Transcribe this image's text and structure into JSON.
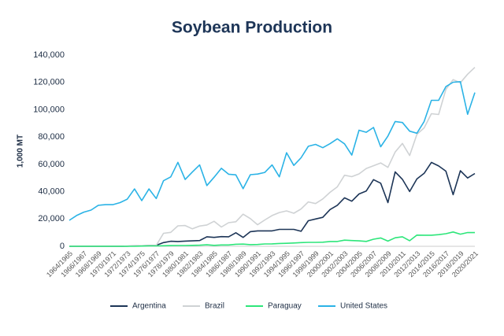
{
  "chart_data": {
    "type": "line",
    "title": "Soybean Production",
    "y_label": "1,000 MT",
    "categories": [
      "1964/1965",
      null,
      "1966/1967",
      null,
      "1968/1969",
      null,
      "1970/1971",
      null,
      "1972/1973",
      null,
      "1974/1975",
      null,
      "1976/1977",
      null,
      "1978/1979",
      null,
      "1980/1981",
      null,
      "1982/1983",
      null,
      "1984/1985",
      null,
      "1986/1987",
      null,
      "1988/1989",
      null,
      "1990/1991",
      null,
      "1992/1993",
      null,
      "1994/1995",
      null,
      "1996/1997",
      null,
      "1998/1999",
      null,
      "2000/2001",
      null,
      "2002/2003",
      null,
      "2004/2005",
      null,
      "2006/2007",
      null,
      "2008/2009",
      null,
      "2010/2011",
      null,
      "2012/2013",
      null,
      "2014/2015",
      null,
      "2016/2017",
      null,
      "2018/2019",
      null,
      "2020/2021"
    ],
    "series": [
      {
        "name": "Argentina",
        "color": "#1d3557",
        "values": [
          0,
          0,
          0,
          0,
          0,
          0,
          0,
          0,
          100,
          300,
          400,
          500,
          700,
          2700,
          3700,
          3500,
          3800,
          4000,
          4200,
          7000,
          6500,
          7100,
          7000,
          9900,
          6500,
          10700,
          11300,
          11300,
          11300,
          12400,
          12400,
          12400,
          11000,
          18700,
          20000,
          21200,
          26900,
          30000,
          35500,
          33000,
          38300,
          40500,
          48800,
          46200,
          32000,
          54500,
          49000,
          40100,
          49300,
          53400,
          61400,
          58800,
          55000,
          37800,
          55300,
          50000,
          53300
        ]
      },
      {
        "name": "Brazil",
        "color": "#cfd2d4",
        "values": [
          0,
          0,
          0,
          0,
          0,
          0,
          0,
          0,
          200,
          300,
          400,
          500,
          700,
          9500,
          10200,
          15000,
          15200,
          12800,
          14800,
          15600,
          18300,
          14100,
          17300,
          18000,
          23500,
          20300,
          15800,
          19300,
          22500,
          24700,
          25900,
          24200,
          27300,
          32500,
          31300,
          34700,
          39500,
          43500,
          52000,
          51000,
          53000,
          57000,
          59000,
          61000,
          57800,
          69000,
          75300,
          66500,
          82000,
          86700,
          97100,
          96500,
          114900,
          122000,
          119700,
          126000,
          131000
        ]
      },
      {
        "name": "Paraguay",
        "color": "#2de67a",
        "values": [
          0,
          0,
          0,
          0,
          0,
          0,
          0,
          0,
          0,
          0,
          200,
          300,
          300,
          400,
          500,
          600,
          600,
          700,
          800,
          1100,
          700,
          1000,
          1000,
          1500,
          1600,
          1200,
          1300,
          1700,
          1800,
          2100,
          2200,
          2400,
          2700,
          2900,
          2900,
          3000,
          3500,
          3500,
          4500,
          4200,
          4000,
          3600,
          5200,
          6100,
          3800,
          6200,
          7000,
          4100,
          8200,
          8100,
          8100,
          8500,
          9200,
          10500,
          8900,
          10100,
          10000
        ]
      },
      {
        "name": "United States",
        "color": "#2bb3e6",
        "values": [
          19000,
          22500,
          25000,
          26500,
          30000,
          30500,
          30500,
          32000,
          34500,
          42000,
          33500,
          42000,
          35000,
          48000,
          50800,
          61500,
          48900,
          54400,
          59600,
          44500,
          50600,
          57100,
          52800,
          52300,
          42200,
          52400,
          52900,
          54100,
          59600,
          50900,
          68500,
          59200,
          64800,
          73200,
          74600,
          72200,
          75100,
          78700,
          75000,
          66800,
          85000,
          83500,
          87000,
          72900,
          80700,
          91400,
          90600,
          84300,
          82800,
          91400,
          106900,
          106900,
          116900,
          120100,
          120500,
          96700,
          112600
        ]
      }
    ],
    "ylim": [
      0,
      140000
    ],
    "yticks": [
      0,
      {
        "value": 20000,
        "label": "20,000"
      },
      {
        "value": 40000,
        "label": "40,000"
      },
      {
        "value": 60000,
        "label": "60,000"
      },
      {
        "value": 80000,
        "label": "80,000"
      },
      {
        "value": 100000,
        "label": "100,000"
      },
      {
        "value": 120000,
        "label": "120,000"
      },
      {
        "value": 140000,
        "label": "140,000"
      }
    ],
    "grid": false,
    "legend": "bottom"
  }
}
